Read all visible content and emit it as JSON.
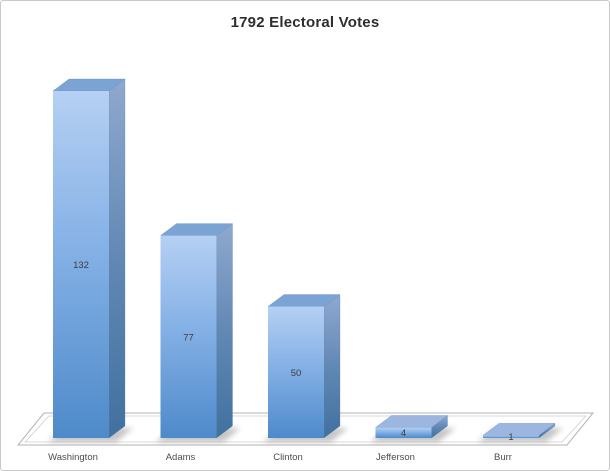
{
  "window": {
    "background": "#ffffff",
    "border_color": "#c9c9c9"
  },
  "chart_data": {
    "type": "bar",
    "style": "3d-column",
    "title": "1792 Electoral Votes",
    "categories": [
      "Washington",
      "Adams",
      "Clinton",
      "Jefferson",
      "Burr"
    ],
    "values": [
      132,
      77,
      50,
      4,
      1
    ],
    "data_labels": [
      "132",
      "77",
      "50",
      "4",
      "1"
    ],
    "xlabel": "",
    "ylabel": "",
    "ylim": [
      0,
      132
    ],
    "grid": false,
    "legend": false
  },
  "palette": {
    "title_color": "#2e2e2e",
    "category_label_color": "#4d4d4d",
    "value_label_color": "#3d3d3d",
    "bar_front_top": "#b5d0f3",
    "bar_front_mid": "#85b1e6",
    "bar_front_bottom": "#4e8aca",
    "bar_side_top": "#8fa9cf",
    "bar_side_mid": "#6288b4",
    "bar_side_bottom": "#40719f",
    "bar_top_face": "#7ba3d4",
    "bar_top_face_short": "#9cb6e0",
    "bar_edge": "#5d87b8",
    "floor_fill": "#ffffff",
    "floor_edge": "#b3b3b3",
    "floor_inner_edge": "#d9d9d9",
    "shadow": "#8c8c8c"
  }
}
